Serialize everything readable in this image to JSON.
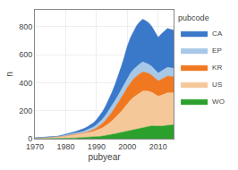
{
  "chart_data": {
    "type": "area",
    "stacked": true,
    "xlabel": "pubyear",
    "ylabel": "n",
    "legend_title": "pubcode",
    "legend": "right",
    "grid": true,
    "xlim": [
      1970,
      2015
    ],
    "xticks": [
      1970,
      1980,
      1990,
      2000,
      2010
    ],
    "ylim": [
      0,
      920
    ],
    "yticks": [
      0,
      200,
      400,
      600,
      800
    ],
    "x": [
      1970,
      1971,
      1972,
      1973,
      1974,
      1975,
      1976,
      1977,
      1978,
      1979,
      1980,
      1981,
      1982,
      1983,
      1984,
      1985,
      1986,
      1987,
      1988,
      1989,
      1990,
      1991,
      1992,
      1993,
      1994,
      1995,
      1996,
      1997,
      1998,
      1999,
      2000,
      2001,
      2002,
      2003,
      2004,
      2005,
      2006,
      2007,
      2008,
      2009,
      2010,
      2011,
      2012,
      2013,
      2014,
      2015
    ],
    "series": [
      {
        "name": "WO",
        "color": "#2CA02C",
        "values": [
          0,
          0,
          0,
          0,
          0,
          0,
          0,
          0,
          0,
          1,
          2,
          3,
          4,
          5,
          6,
          7,
          8,
          9,
          10,
          12,
          14,
          16,
          19,
          22,
          26,
          30,
          35,
          40,
          45,
          50,
          55,
          60,
          65,
          70,
          75,
          80,
          85,
          90,
          92,
          90,
          88,
          90,
          92,
          95,
          98,
          100
        ]
      },
      {
        "name": "US",
        "color": "#F5C89A",
        "values": [
          5,
          6,
          7,
          8,
          9,
          10,
          11,
          12,
          14,
          16,
          18,
          20,
          22,
          24,
          26,
          28,
          30,
          33,
          36,
          40,
          45,
          52,
          60,
          70,
          82,
          96,
          112,
          128,
          148,
          170,
          195,
          215,
          230,
          242,
          252,
          260,
          255,
          248,
          238,
          225,
          215,
          220,
          228,
          232,
          230,
          228
        ]
      },
      {
        "name": "KR",
        "color": "#F07820",
        "values": [
          0,
          0,
          0,
          0,
          0,
          0,
          0,
          0,
          0,
          0,
          0,
          0,
          1,
          1,
          2,
          3,
          4,
          6,
          9,
          13,
          18,
          24,
          32,
          42,
          53,
          64,
          76,
          88,
          98,
          108,
          118,
          126,
          132,
          136,
          138,
          138,
          133,
          128,
          122,
          116,
          110,
          114,
          118,
          120,
          118,
          116
        ]
      },
      {
        "name": "EP",
        "color": "#A8C8E8",
        "values": [
          0,
          0,
          0,
          1,
          1,
          1,
          2,
          2,
          3,
          4,
          5,
          6,
          7,
          8,
          9,
          10,
          12,
          14,
          16,
          18,
          22,
          26,
          30,
          35,
          40,
          44,
          48,
          52,
          56,
          60,
          63,
          65,
          67,
          68,
          69,
          70,
          68,
          65,
          62,
          58,
          55,
          58,
          60,
          62,
          60,
          58
        ]
      },
      {
        "name": "CA",
        "color": "#3A78C9",
        "values": [
          1,
          1,
          1,
          1,
          2,
          2,
          2,
          3,
          4,
          5,
          6,
          8,
          10,
          12,
          14,
          16,
          19,
          22,
          26,
          30,
          36,
          44,
          54,
          66,
          80,
          96,
          115,
          138,
          165,
          195,
          230,
          255,
          275,
          290,
          300,
          305,
          300,
          295,
          285,
          270,
          255,
          265,
          272,
          278,
          275,
          272
        ]
      }
    ]
  }
}
